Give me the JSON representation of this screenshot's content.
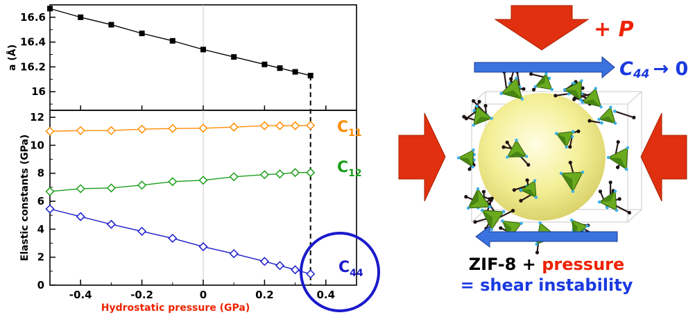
{
  "chart_data": [
    {
      "type": "line",
      "xlabel": "",
      "ylabel": "a (Å)",
      "xlim": [
        -0.5,
        0.5
      ],
      "ylim": [
        15.85,
        16.7
      ],
      "yticks": [
        "16.6",
        "16.4",
        "16.2",
        "16"
      ],
      "marker": "filled-square",
      "color": "#000000",
      "series": [
        {
          "name": "",
          "x": [
            -0.5,
            -0.4,
            -0.3,
            -0.2,
            -0.1,
            0.0,
            0.1,
            0.2,
            0.25,
            0.3,
            0.35
          ],
          "y": [
            16.67,
            16.6,
            16.54,
            16.47,
            16.41,
            16.34,
            16.28,
            16.22,
            16.19,
            16.16,
            16.13
          ]
        }
      ]
    },
    {
      "type": "line",
      "xlabel": "Hydrostatic pressure (GPa)",
      "ylabel": "Elastic constants (GPa)",
      "xlim": [
        -0.5,
        0.5
      ],
      "ylim": [
        0,
        12.5
      ],
      "xticks": [
        "-0.4",
        "-0.2",
        "0",
        "0.2",
        "0.4"
      ],
      "yticks": [
        "0",
        "2",
        "4",
        "6",
        "8",
        "10",
        "12"
      ],
      "marker": "open-diamond",
      "instability_pressure": 0.35,
      "series": [
        {
          "name": "C11",
          "label_main": "C",
          "label_sub": "11",
          "color": "#ff8c00",
          "x": [
            -0.5,
            -0.4,
            -0.3,
            -0.2,
            -0.1,
            0.0,
            0.1,
            0.2,
            0.25,
            0.3,
            0.35
          ],
          "y": [
            11.0,
            11.05,
            11.05,
            11.15,
            11.2,
            11.22,
            11.3,
            11.4,
            11.4,
            11.4,
            11.42
          ]
        },
        {
          "name": "C12",
          "label_main": "C",
          "label_sub": "12",
          "color": "#1a9e1a",
          "x": [
            -0.5,
            -0.4,
            -0.3,
            -0.2,
            -0.1,
            0.0,
            0.1,
            0.2,
            0.25,
            0.3,
            0.35
          ],
          "y": [
            6.7,
            6.9,
            6.95,
            7.15,
            7.4,
            7.5,
            7.75,
            7.9,
            7.95,
            8.05,
            8.05
          ]
        },
        {
          "name": "C44",
          "label_main": "C",
          "label_sub": "44",
          "color": "#1a1acc",
          "x": [
            -0.5,
            -0.4,
            -0.3,
            -0.2,
            -0.1,
            0.0,
            0.1,
            0.2,
            0.25,
            0.3,
            0.35
          ],
          "y": [
            5.45,
            4.9,
            4.35,
            3.85,
            3.35,
            2.75,
            2.25,
            1.7,
            1.4,
            1.1,
            0.8
          ]
        }
      ]
    }
  ],
  "illustration": {
    "pressure_label": "+ P",
    "shear_label_main": "C",
    "shear_label_sub": "44",
    "shear_label_tail": "→ 0",
    "caption_line1_black": "ZIF-8 + ",
    "caption_line1_red": "pressure",
    "caption_line2": "= shear instability",
    "colors": {
      "arrow_red": "#e03010",
      "arrow_blue": "#3a72e0",
      "text_red": "#ee2200",
      "text_blue": "#1a3ae0",
      "sphere": "#f0ec80",
      "tetrahedra": "#6aaa1e"
    }
  }
}
